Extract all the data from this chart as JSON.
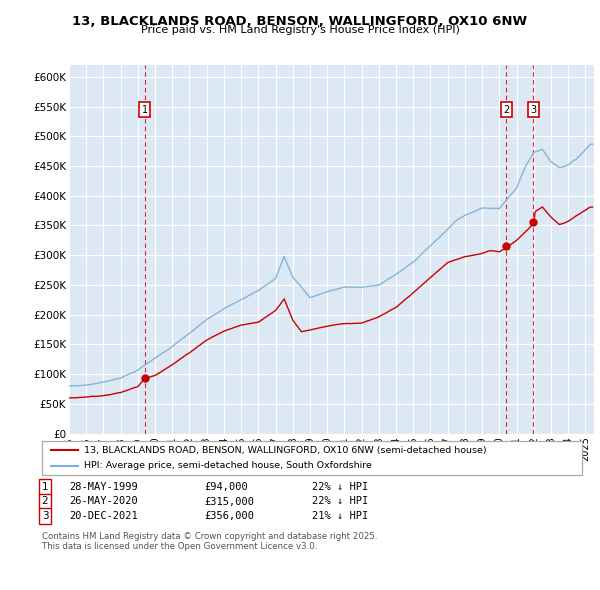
{
  "title_line1": "13, BLACKLANDS ROAD, BENSON, WALLINGFORD, OX10 6NW",
  "title_line2": "Price paid vs. HM Land Registry's House Price Index (HPI)",
  "ylabel_ticks": [
    "£0",
    "£50K",
    "£100K",
    "£150K",
    "£200K",
    "£250K",
    "£300K",
    "£350K",
    "£400K",
    "£450K",
    "£500K",
    "£550K",
    "£600K"
  ],
  "ytick_values": [
    0,
    50000,
    100000,
    150000,
    200000,
    250000,
    300000,
    350000,
    400000,
    450000,
    500000,
    550000,
    600000
  ],
  "hpi_color": "#7bafd4",
  "price_color": "#cc0000",
  "bg_color": "#dce9f5",
  "legend_label_price": "13, BLACKLANDS ROAD, BENSON, WALLINGFORD, OX10 6NW (semi-detached house)",
  "legend_label_hpi": "HPI: Average price, semi-detached house, South Oxfordshire",
  "transactions": [
    {
      "num": 1,
      "date": "28-MAY-1999",
      "price": 94000,
      "pct": "22%",
      "dir": "↓",
      "x": 1999.41
    },
    {
      "num": 2,
      "date": "26-MAY-2020",
      "price": 315000,
      "pct": "22%",
      "dir": "↓",
      "x": 2020.4
    },
    {
      "num": 3,
      "date": "20-DEC-2021",
      "price": 356000,
      "pct": "21%",
      "dir": "↓",
      "x": 2021.96
    }
  ],
  "footer_line1": "Contains HM Land Registry data © Crown copyright and database right 2025.",
  "footer_line2": "This data is licensed under the Open Government Licence v3.0.",
  "xmin": 1995.0,
  "xmax": 2025.5,
  "hpi_anchors_x": [
    1995.0,
    1996.0,
    1997.0,
    1998.0,
    1999.0,
    2000.0,
    2001.0,
    2002.0,
    2003.0,
    2004.0,
    2005.0,
    2006.0,
    2007.0,
    2007.5,
    2008.0,
    2009.0,
    2010.0,
    2011.0,
    2012.0,
    2013.0,
    2014.0,
    2015.0,
    2016.0,
    2017.0,
    2017.5,
    2018.0,
    2018.5,
    2019.0,
    2020.0,
    2021.0,
    2021.5,
    2022.0,
    2022.5,
    2023.0,
    2023.5,
    2024.0,
    2024.5,
    2025.3
  ],
  "hpi_anchors_y": [
    80000,
    82000,
    87000,
    95000,
    108000,
    128000,
    148000,
    170000,
    192000,
    210000,
    225000,
    240000,
    262000,
    300000,
    265000,
    230000,
    240000,
    248000,
    248000,
    252000,
    270000,
    290000,
    318000,
    345000,
    360000,
    368000,
    375000,
    382000,
    380000,
    415000,
    450000,
    475000,
    480000,
    460000,
    450000,
    455000,
    465000,
    490000
  ],
  "price_anchors_x": [
    1995.0,
    1996.0,
    1997.0,
    1998.0,
    1999.0,
    1999.41,
    2000.0,
    2001.0,
    2002.0,
    2003.0,
    2004.0,
    2005.0,
    2006.0,
    2007.0,
    2007.5,
    2008.0,
    2008.5,
    2009.0,
    2010.0,
    2011.0,
    2012.0,
    2013.0,
    2014.0,
    2015.0,
    2016.0,
    2017.0,
    2018.0,
    2019.0,
    2019.5,
    2020.0,
    2020.4,
    2021.0,
    2021.5,
    2021.96,
    2022.0,
    2022.5,
    2023.0,
    2023.5,
    2024.0,
    2024.5,
    2025.3
  ],
  "price_anchors_y": [
    60000,
    62000,
    65000,
    70000,
    80000,
    94000,
    100000,
    118000,
    138000,
    160000,
    175000,
    185000,
    190000,
    210000,
    230000,
    195000,
    175000,
    178000,
    185000,
    190000,
    190000,
    200000,
    215000,
    240000,
    265000,
    290000,
    300000,
    305000,
    310000,
    308000,
    315000,
    328000,
    342000,
    356000,
    375000,
    385000,
    368000,
    355000,
    360000,
    370000,
    385000
  ]
}
